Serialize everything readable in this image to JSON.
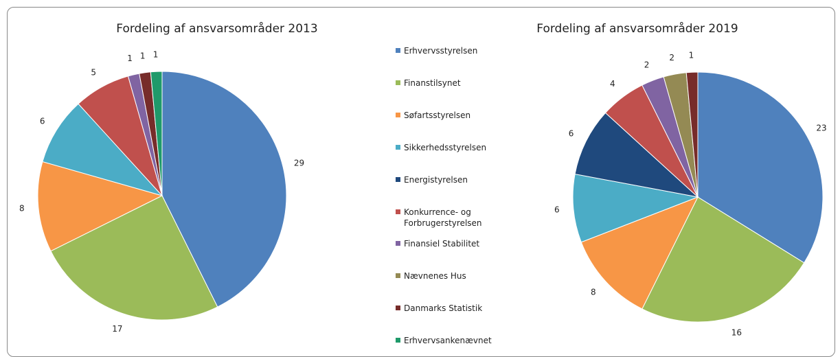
{
  "chart_data": [
    {
      "type": "pie",
      "title": "Fordeling af ansvarsområder 2013",
      "values": [
        29,
        17,
        8,
        6,
        null,
        5,
        1,
        null,
        1,
        1
      ]
    },
    {
      "type": "pie",
      "title": "Fordeling af ansvarsområder 2019",
      "values": [
        23,
        16,
        8,
        6,
        6,
        4,
        2,
        2,
        1,
        null
      ]
    }
  ],
  "legend": {
    "categories": [
      "Erhvervsstyrelsen",
      "Finanstilsynet",
      "Søfartsstyrelsen",
      "Sikkerhedsstyrelsen",
      "Energistyrelsen",
      "Konkurrence- og Forbrugerstyrelsen",
      "Finansiel Stabilitet",
      "Nævnenes Hus",
      "Danmarks Statistik",
      "Erhvervsankenævnet"
    ],
    "colors": [
      "#4f81bd",
      "#9bbb59",
      "#f79646",
      "#4bacc6",
      "#1f497d",
      "#c0504d",
      "#8064a2",
      "#948a54",
      "#772c2a",
      "#1f9a6a"
    ]
  }
}
